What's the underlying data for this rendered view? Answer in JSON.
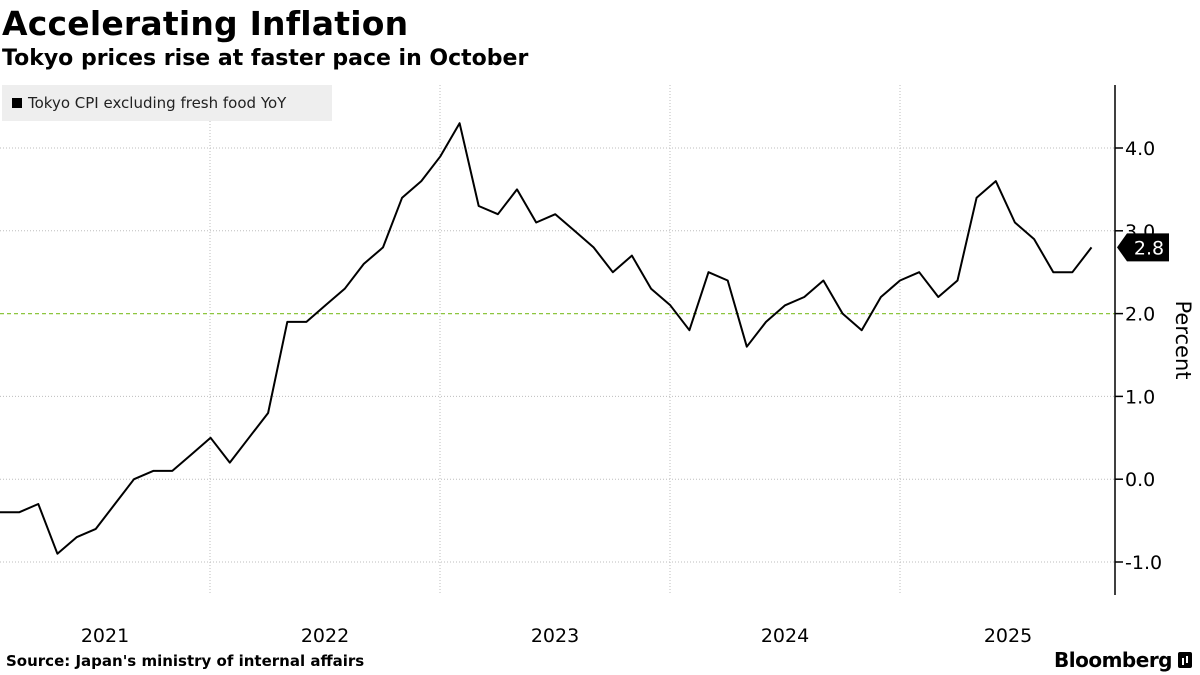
{
  "title": "Accelerating Inflation",
  "subtitle": "Tokyo prices rise at faster pace in October",
  "legend": {
    "label": "Tokyo CPI excluding fresh food YoY"
  },
  "source": "Source: Japan's ministry of internal affairs",
  "brand": "Bloomberg",
  "colors": {
    "line": "#000000",
    "grid": "#bdbdbd",
    "target": "#8dc63f",
    "legend_bg": "#eeeeee"
  },
  "chart_data": {
    "type": "line",
    "ylabel": "Percent",
    "ylim": [
      -1.4,
      4.8
    ],
    "yticks": [
      -1.0,
      0.0,
      1.0,
      2.0,
      3.0,
      4.0
    ],
    "ytick_labels": [
      "-1.0",
      "0.0",
      "1.0",
      "2.0",
      "3.0",
      "4.0"
    ],
    "x_year_labels": [
      "2021",
      "2022",
      "2023",
      "2024",
      "2025"
    ],
    "reference_line": {
      "value": 2.0,
      "style": "dashed"
    },
    "last_value_label": "2.8",
    "series": [
      {
        "name": "Tokyo CPI excluding fresh food YoY",
        "start": "2020-10",
        "frequency": "monthly",
        "values": [
          -0.4,
          -0.4,
          -0.3,
          -0.9,
          -0.7,
          -0.6,
          -0.3,
          0.0,
          0.1,
          0.1,
          0.3,
          0.5,
          0.2,
          0.5,
          0.8,
          1.9,
          1.9,
          2.1,
          2.3,
          2.6,
          2.8,
          3.4,
          3.6,
          3.9,
          4.3,
          3.3,
          3.2,
          3.5,
          3.1,
          3.2,
          3.0,
          2.8,
          2.5,
          2.7,
          2.3,
          2.1,
          1.8,
          2.5,
          2.4,
          1.6,
          1.9,
          2.1,
          2.2,
          2.4,
          2.0,
          1.8,
          2.2,
          2.4,
          2.5,
          2.2,
          2.4,
          3.4,
          3.6,
          3.1,
          2.9,
          2.5,
          2.5,
          2.8
        ]
      }
    ]
  }
}
